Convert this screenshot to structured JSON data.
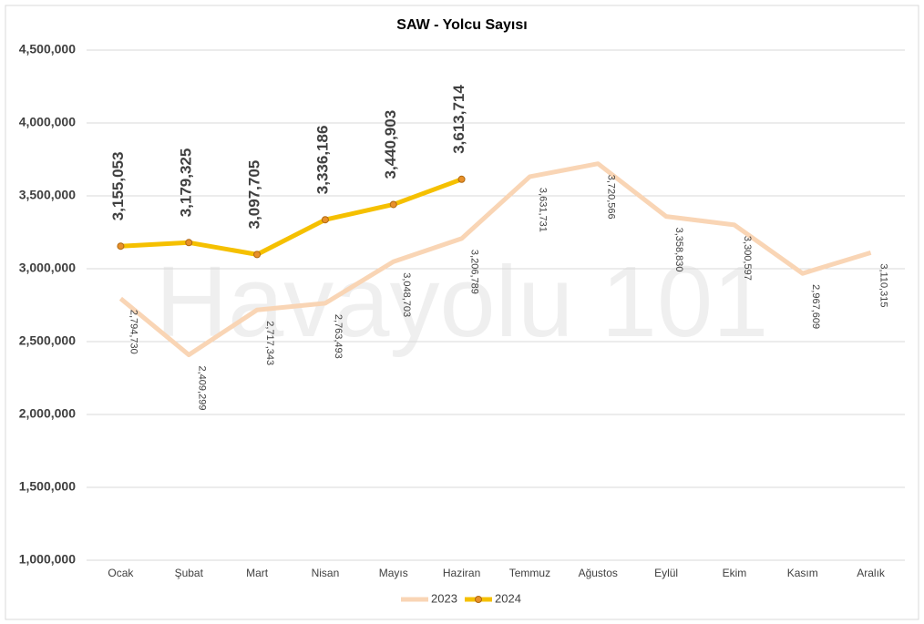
{
  "chart_data": {
    "type": "line",
    "title": "SAW - Yolcu Sayısı",
    "watermark": "Havayolu 101",
    "categories": [
      "Ocak",
      "Şubat",
      "Mart",
      "Nisan",
      "Mayıs",
      "Haziran",
      "Temmuz",
      "Ağustos",
      "Eylül",
      "Ekim",
      "Kasım",
      "Aralık"
    ],
    "series": [
      {
        "name": "2023",
        "color": "#f9d5b5",
        "values": [
          2794730,
          2409299,
          2717343,
          2763493,
          3048703,
          3206789,
          3631731,
          3720566,
          3358830,
          3300597,
          2967609,
          3110315
        ],
        "value_labels": [
          "2,794,730",
          "2,409,299",
          "2,717,343",
          "2,763,493",
          "3,048,703",
          "3,206,789",
          "3,631,731",
          "3,720,566",
          "3,358,830",
          "3,300,597",
          "2,967,609",
          "3,110,315"
        ]
      },
      {
        "name": "2024",
        "color": "#f5c000",
        "marker_color": "#e8902a",
        "values": [
          3155053,
          3179325,
          3097705,
          3336186,
          3440903,
          3613714,
          null,
          null,
          null,
          null,
          null,
          null
        ],
        "value_labels": [
          "3,155,053",
          "3,179,325",
          "3,097,705",
          "3,336,186",
          "3,440,903",
          "3,613,714",
          null,
          null,
          null,
          null,
          null,
          null
        ]
      }
    ],
    "ylim": [
      1000000,
      4500000
    ],
    "yticks": [
      {
        "value": 1000000,
        "label": "1,000,000"
      },
      {
        "value": 1500000,
        "label": "1,500,000"
      },
      {
        "value": 2000000,
        "label": "2,000,000"
      },
      {
        "value": 2500000,
        "label": "2,500,000"
      },
      {
        "value": 3000000,
        "label": "3,000,000"
      },
      {
        "value": 3500000,
        "label": "3,500,000"
      },
      {
        "value": 4000000,
        "label": "4,000,000"
      },
      {
        "value": 4500000,
        "label": "4,500,000"
      }
    ],
    "grid": true,
    "legend": "bottom"
  }
}
